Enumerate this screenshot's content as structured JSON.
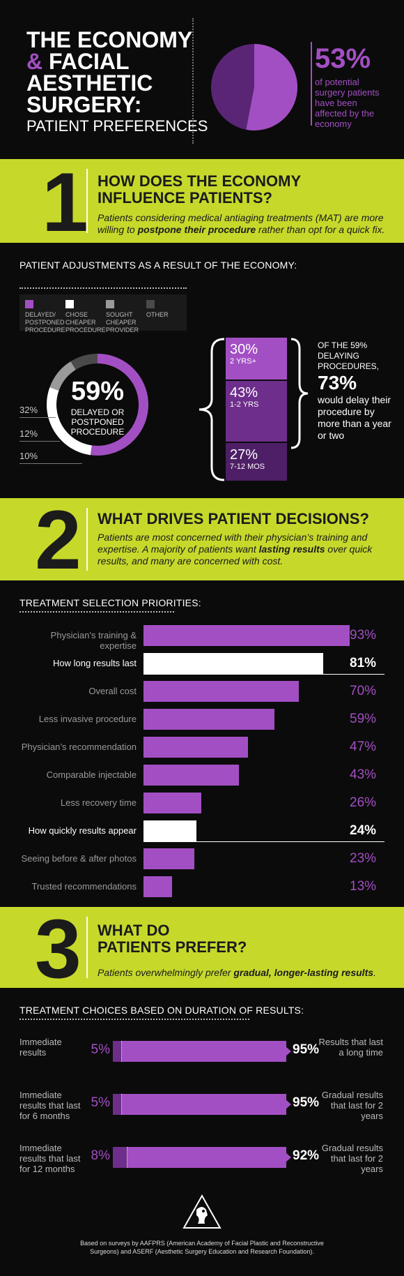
{
  "header": {
    "title_line1": "THE ECONOMY",
    "title_amp": "&",
    "title_line2": "FACIAL",
    "title_line3": "AESTHETIC",
    "title_line4": "SURGERY:",
    "subtitle": "PATIENT PREFERENCES",
    "stat_value": "53%",
    "stat_text": "of potential surgery patients have been affected by the economy",
    "affected_fraction": 0.53
  },
  "section1": {
    "number": "1",
    "title": "HOW DOES THE ECONOMY INFLUENCE PATIENTS?",
    "body_pre": "Patients considering medical antiaging treatments (MAT) are more willing to ",
    "body_bold": "postpone their procedure",
    "body_post": " rather than opt for a quick fix."
  },
  "adjustments": {
    "heading": "PATIENT ADJUSTMENTS AS A RESULT OF THE ECONOMY:",
    "legend": [
      {
        "label": "DELAYED/ POSTPONED PROCEDURE",
        "color": "#a34fc4"
      },
      {
        "label": "CHOSE CHEAPER PROCEDURE",
        "color": "#ffffff"
      },
      {
        "label": "SOUGHT CHEAPER PROVIDER",
        "color": "#9a9a9a"
      },
      {
        "label": "OTHER",
        "color": "#4a4a4a"
      }
    ],
    "center_value": "59%",
    "center_label": "DELAYED OR POSTPONED PROCEDURE",
    "side_labels": [
      "32%",
      "12%",
      "10%"
    ],
    "stack": [
      {
        "pct": "30%",
        "label": "2 YRS+"
      },
      {
        "pct": "43%",
        "label": "1-2 YRS"
      },
      {
        "pct": "27%",
        "label": "7-12 MOS"
      }
    ],
    "note_pre": "OF THE 59% DELAYING PROCEDURES,",
    "note_value": "73%",
    "note_post": "would delay their procedure by more than a year or two"
  },
  "section2": {
    "number": "2",
    "title": "WHAT DRIVES PATIENT DECISIONS?",
    "body_pre": "Patients are most concerned with their physician’s training and expertise. A majority of patients want ",
    "body_bold": "lasting results",
    "body_post": " over quick results, and many are concerned with cost."
  },
  "priorities": {
    "heading": "TREATMENT SELECTION PRIORITIES:"
  },
  "section3": {
    "number": "3",
    "title_line1": "WHAT DO",
    "title_line2": "PATIENTS PREFER?",
    "body_pre": "Patients overwhelmingly prefer ",
    "body_bold": "gradual, longer-lasting results",
    "body_post": "."
  },
  "durations": {
    "heading": "TREATMENT CHOICES BASED ON DURATION OF RESULTS:",
    "rows": [
      {
        "left": "Immediate results",
        "left_pct": "5%",
        "right_pct": "95%",
        "right": "Results that last a long time",
        "left_value": 5,
        "right_value": 95
      },
      {
        "left": "Immediate results that last for 6 months",
        "left_pct": "5%",
        "right_pct": "95%",
        "right": "Gradual results that last for 2 years",
        "left_value": 5,
        "right_value": 95
      },
      {
        "left": "Immediate results that last for 12 months",
        "left_pct": "8%",
        "right_pct": "92%",
        "right": "Gradual results that last for 2 years",
        "left_value": 8,
        "right_value": 92
      }
    ]
  },
  "footer": {
    "source": "Based on surveys by AAFPRS (American Academy of Facial Plastic and Reconstructive Surgeons) and ASERF (Aesthetic Surgery Education and Research Foundation)."
  },
  "colors": {
    "purple": "#a34fc4",
    "dark_purple": "#5a2575",
    "lime": "#c6d92b",
    "background": "#0b0b0b"
  },
  "chart_data": [
    {
      "type": "pie",
      "labels": [
        "affected by the economy",
        "not affected"
      ],
      "values": [
        53,
        47
      ]
    },
    {
      "type": "pie",
      "categories": [
        "DELAYED/ POSTPONED PROCEDURE",
        "CHOSE CHEAPER PROCEDURE",
        "SOUGHT CHEAPER PROVIDER",
        "OTHER"
      ],
      "values": [
        59,
        32,
        12,
        10
      ]
    },
    {
      "type": "bar",
      "categories": [
        "2 YRS+",
        "1-2 YRS",
        "7-12 MOS"
      ],
      "values": [
        30,
        43,
        27
      ]
    },
    {
      "type": "bar",
      "title": "TREATMENT SELECTION PRIORITIES:",
      "categories": [
        "Physician’s training & expertise",
        "How long results last",
        "Overall cost",
        "Less invasive procedure",
        "Physician’s recommendation",
        "Comparable injectable",
        "Less recovery time",
        "How quickly results appear",
        "Seeing before & after photos",
        "Trusted recommendations"
      ],
      "values": [
        93,
        81,
        70,
        59,
        47,
        43,
        26,
        24,
        23,
        13
      ],
      "labels": [
        "93%",
        "81%",
        "70%",
        "59%",
        "47%",
        "43%",
        "26%",
        "24%",
        "23%",
        "13%"
      ],
      "highlighted": [
        "How long results last",
        "How quickly results appear"
      ],
      "ylim": [
        0,
        100
      ]
    }
  ]
}
